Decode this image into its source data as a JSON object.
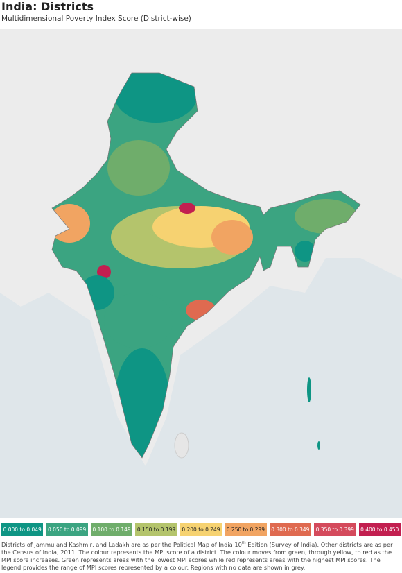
{
  "header": {
    "title": "India: Districts",
    "subtitle": "Multidimensional Poverty Index Score (District-wise)"
  },
  "legend": {
    "items": [
      {
        "label": "0.000 to 0.049",
        "color": "#0e9584"
      },
      {
        "label": "0.050 to 0.099",
        "color": "#3ba481"
      },
      {
        "label": "0.100 to 0.149",
        "color": "#6fad6b"
      },
      {
        "label": "0.150 to 0.199",
        "color": "#b4c46c"
      },
      {
        "label": "0.200 to 0.249",
        "color": "#f6d271"
      },
      {
        "label": "0.250 to 0.299",
        "color": "#f1a462"
      },
      {
        "label": "0.300 to 0.349",
        "color": "#df6a50"
      },
      {
        "label": "0.350 to 0.399",
        "color": "#d44a5c"
      },
      {
        "label": "0.400 to 0.450",
        "color": "#c21f50"
      }
    ]
  },
  "footnote": {
    "parts": [
      "Districts of Jammu and Kashmir, and Ladakh are as per the Political Map of India 10",
      "th",
      " Edition (Survey of India). Other districts are as per the Census of India, 2011. The colour represents the MPI score of a district. The colour moves from green, through yellow, to red as the MPI score increases. Green represents areas with the lowest MPI scores while red represents areas with the highest MPI scores. The legend provides the range of MPI scores represented by a colour. Regions with no data are shown in grey."
    ]
  }
}
